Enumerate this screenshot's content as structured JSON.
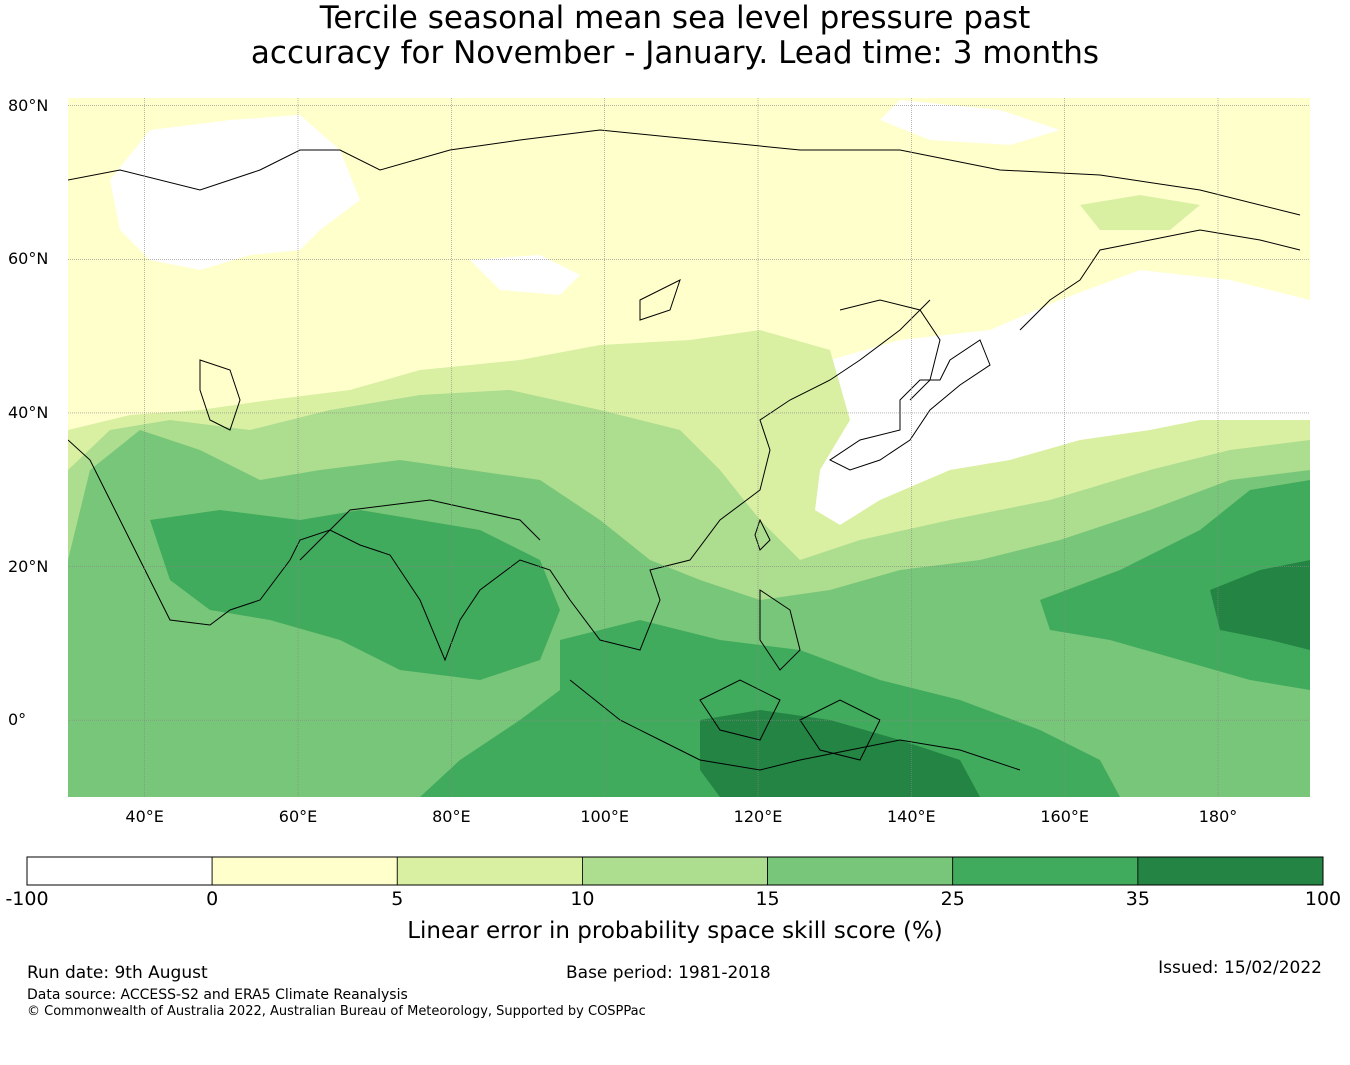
{
  "title_line1": "Tercile seasonal mean sea level pressure past",
  "title_line2": "accuracy for November - January. Lead time: 3 months",
  "map": {
    "lon_range": [
      30,
      192
    ],
    "lat_range": [
      -10,
      81
    ],
    "lat_ticks": [
      {
        "value": 80,
        "label": "80°N"
      },
      {
        "value": 60,
        "label": "60°N"
      },
      {
        "value": 40,
        "label": "40°N"
      },
      {
        "value": 20,
        "label": "20°N"
      },
      {
        "value": 0,
        "label": "0°"
      }
    ],
    "lon_ticks": [
      {
        "value": 40,
        "label": "40°E"
      },
      {
        "value": 60,
        "label": "60°E"
      },
      {
        "value": 80,
        "label": "80°E"
      },
      {
        "value": 100,
        "label": "100°E"
      },
      {
        "value": 120,
        "label": "120°E"
      },
      {
        "value": 140,
        "label": "140°E"
      },
      {
        "value": 160,
        "label": "160°E"
      },
      {
        "value": 180,
        "label": "180°"
      }
    ],
    "colors": {
      "c1": "#ffffff",
      "c2": "#ffffcc",
      "c3": "#d9f0a3",
      "c4": "#addd8e",
      "c5": "#78c679",
      "c6": "#41ab5d",
      "c7": "#238443"
    }
  },
  "colorbar": {
    "ticks": [
      "-100",
      "0",
      "5",
      "10",
      "15",
      "25",
      "35",
      "100"
    ],
    "label": "Linear error in probability space skill score (%)"
  },
  "footer": {
    "run_date": "Run date: 9th August",
    "base_period": "Base period: 1981-2018",
    "issued": "Issued: 15/02/2022",
    "data_source": "Data source: ACCESS-S2 and ERA5 Climate Reanalysis",
    "copyright": "© Commonwealth of Australia 2022, Australian Bureau of Meteorology, Supported by COSPPac"
  }
}
